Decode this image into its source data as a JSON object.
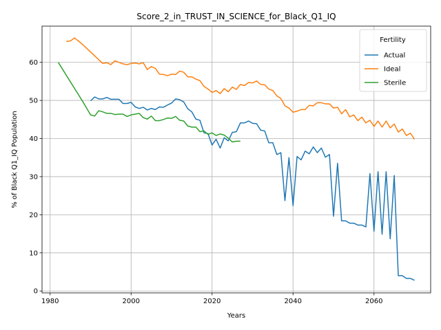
{
  "chart_data": {
    "type": "line",
    "title": "Score_2_in_TRUST_IN_SCIENCE_for_Black_Q1_IQ",
    "xlabel": "Years",
    "ylabel": "% of Black Q1_IQ Population",
    "xlim": [
      1978,
      2074
    ],
    "ylim": [
      -0.5,
      69.5
    ],
    "xticks": [
      1980,
      2000,
      2020,
      2040,
      2060
    ],
    "yticks": [
      0,
      10,
      20,
      30,
      40,
      50,
      60
    ],
    "grid": true,
    "legend": {
      "title": "Fertility",
      "placement": "top-right"
    },
    "series": [
      {
        "name": "Actual",
        "color": "#1f77b4",
        "x": [
          1990,
          1991,
          1992,
          1993,
          1994,
          1995,
          1996,
          1997,
          1998,
          1999,
          2000,
          2001,
          2002,
          2003,
          2004,
          2005,
          2006,
          2007,
          2008,
          2009,
          2010,
          2011,
          2012,
          2013,
          2014,
          2015,
          2016,
          2017,
          2018,
          2019,
          2020,
          2021,
          2022,
          2023,
          2024,
          2025,
          2026,
          2027,
          2028,
          2029,
          2030,
          2031,
          2032,
          2033,
          2034,
          2035,
          2036,
          2037,
          2038,
          2039,
          2040,
          2041,
          2042,
          2043,
          2044,
          2045,
          2046,
          2047,
          2048,
          2049,
          2050,
          2051,
          2052,
          2053,
          2054,
          2055,
          2056,
          2057,
          2058,
          2059,
          2060,
          2061,
          2062,
          2063,
          2064,
          2065,
          2066,
          2067,
          2068,
          2069,
          2070
        ],
        "values": [
          49.9,
          50.9,
          50.4,
          50.4,
          50.8,
          50.3,
          50.3,
          50.3,
          49.2,
          49.2,
          49.5,
          48.3,
          47.9,
          48.2,
          47.5,
          47.9,
          47.6,
          48.3,
          48.2,
          48.8,
          49.3,
          50.4,
          50.2,
          49.6,
          47.8,
          47.0,
          45.1,
          44.8,
          41.5,
          41.3,
          38.3,
          39.8,
          37.5,
          40.2,
          39.4,
          41.6,
          41.8,
          44.1,
          44.1,
          44.6,
          44.0,
          43.9,
          42.2,
          42.0,
          38.9,
          38.9,
          35.8,
          36.3,
          23.7,
          35.0,
          22.4,
          35.3,
          34.4,
          36.7,
          36.0,
          37.8,
          36.3,
          37.5,
          35.1,
          35.8,
          19.6,
          33.5,
          18.4,
          18.4,
          17.8,
          17.8,
          17.3,
          17.3,
          16.8,
          30.8,
          15.7,
          31.3,
          14.9,
          31.3,
          13.7,
          30.3,
          4.0,
          4.0,
          3.3,
          3.3,
          2.8
        ]
      },
      {
        "name": "Ideal",
        "color": "#ff7f0e",
        "x": [
          1984,
          1985,
          1986,
          1987,
          1988,
          1989,
          1990,
          1991,
          1992,
          1993,
          1994,
          1995,
          1996,
          1997,
          1998,
          1999,
          2000,
          2001,
          2002,
          2003,
          2004,
          2005,
          2006,
          2007,
          2008,
          2009,
          2010,
          2011,
          2012,
          2013,
          2014,
          2015,
          2016,
          2017,
          2018,
          2019,
          2020,
          2021,
          2022,
          2023,
          2024,
          2025,
          2026,
          2027,
          2028,
          2029,
          2030,
          2031,
          2032,
          2033,
          2034,
          2035,
          2036,
          2037,
          2038,
          2039,
          2040,
          2041,
          2042,
          2043,
          2044,
          2045,
          2046,
          2047,
          2048,
          2049,
          2050,
          2051,
          2052,
          2053,
          2054,
          2055,
          2056,
          2057,
          2058,
          2059,
          2060,
          2061,
          2062,
          2063,
          2064,
          2065,
          2066,
          2067,
          2068,
          2069,
          2070
        ],
        "values": [
          65.5,
          65.6,
          66.4,
          65.6,
          64.7,
          63.7,
          62.7,
          61.7,
          60.7,
          59.7,
          59.9,
          59.4,
          60.4,
          60.0,
          59.6,
          59.4,
          59.7,
          59.8,
          59.6,
          59.9,
          58.1,
          58.9,
          58.4,
          56.9,
          56.8,
          56.5,
          56.9,
          56.8,
          57.7,
          57.4,
          56.2,
          56.2,
          55.6,
          55.2,
          53.7,
          53.0,
          52.1,
          52.6,
          51.8,
          53.1,
          52.3,
          53.5,
          52.9,
          54.2,
          53.9,
          54.7,
          54.6,
          55.1,
          54.2,
          54.1,
          53.0,
          52.6,
          51.2,
          50.5,
          48.6,
          48.0,
          46.9,
          47.2,
          47.6,
          47.6,
          48.7,
          48.6,
          49.4,
          49.4,
          49.1,
          49.1,
          48.0,
          48.2,
          46.5,
          47.6,
          45.7,
          46.2,
          44.7,
          45.6,
          44.1,
          44.8,
          43.2,
          44.6,
          43.0,
          44.6,
          42.8,
          43.8,
          41.7,
          42.5,
          40.8,
          41.4,
          39.8
        ]
      },
      {
        "name": "Sterile",
        "color": "#2ca02c",
        "x": [
          1982,
          1983,
          1984,
          1985,
          1986,
          1987,
          1988,
          1989,
          1990,
          1991,
          1992,
          1993,
          1994,
          1995,
          1996,
          1997,
          1998,
          1999,
          2000,
          2001,
          2002,
          2003,
          2004,
          2005,
          2006,
          2007,
          2008,
          2009,
          2010,
          2011,
          2012,
          2013,
          2014,
          2015,
          2016,
          2017,
          2018,
          2019,
          2020,
          2021,
          2022,
          2023,
          2024,
          2025,
          2026,
          2027
        ],
        "values": [
          60.0,
          58.3,
          56.6,
          54.9,
          53.2,
          51.5,
          49.8,
          48.0,
          46.2,
          45.9,
          47.3,
          47.0,
          46.6,
          46.6,
          46.3,
          46.4,
          46.4,
          45.8,
          46.2,
          46.4,
          46.6,
          45.5,
          45.1,
          45.9,
          44.7,
          44.7,
          45.0,
          45.4,
          45.3,
          45.8,
          44.8,
          44.6,
          43.3,
          43.0,
          43.0,
          41.8,
          42.0,
          41.1,
          41.5,
          40.8,
          41.2,
          40.9,
          40.1,
          39.1,
          39.3,
          39.3
        ]
      }
    ]
  }
}
